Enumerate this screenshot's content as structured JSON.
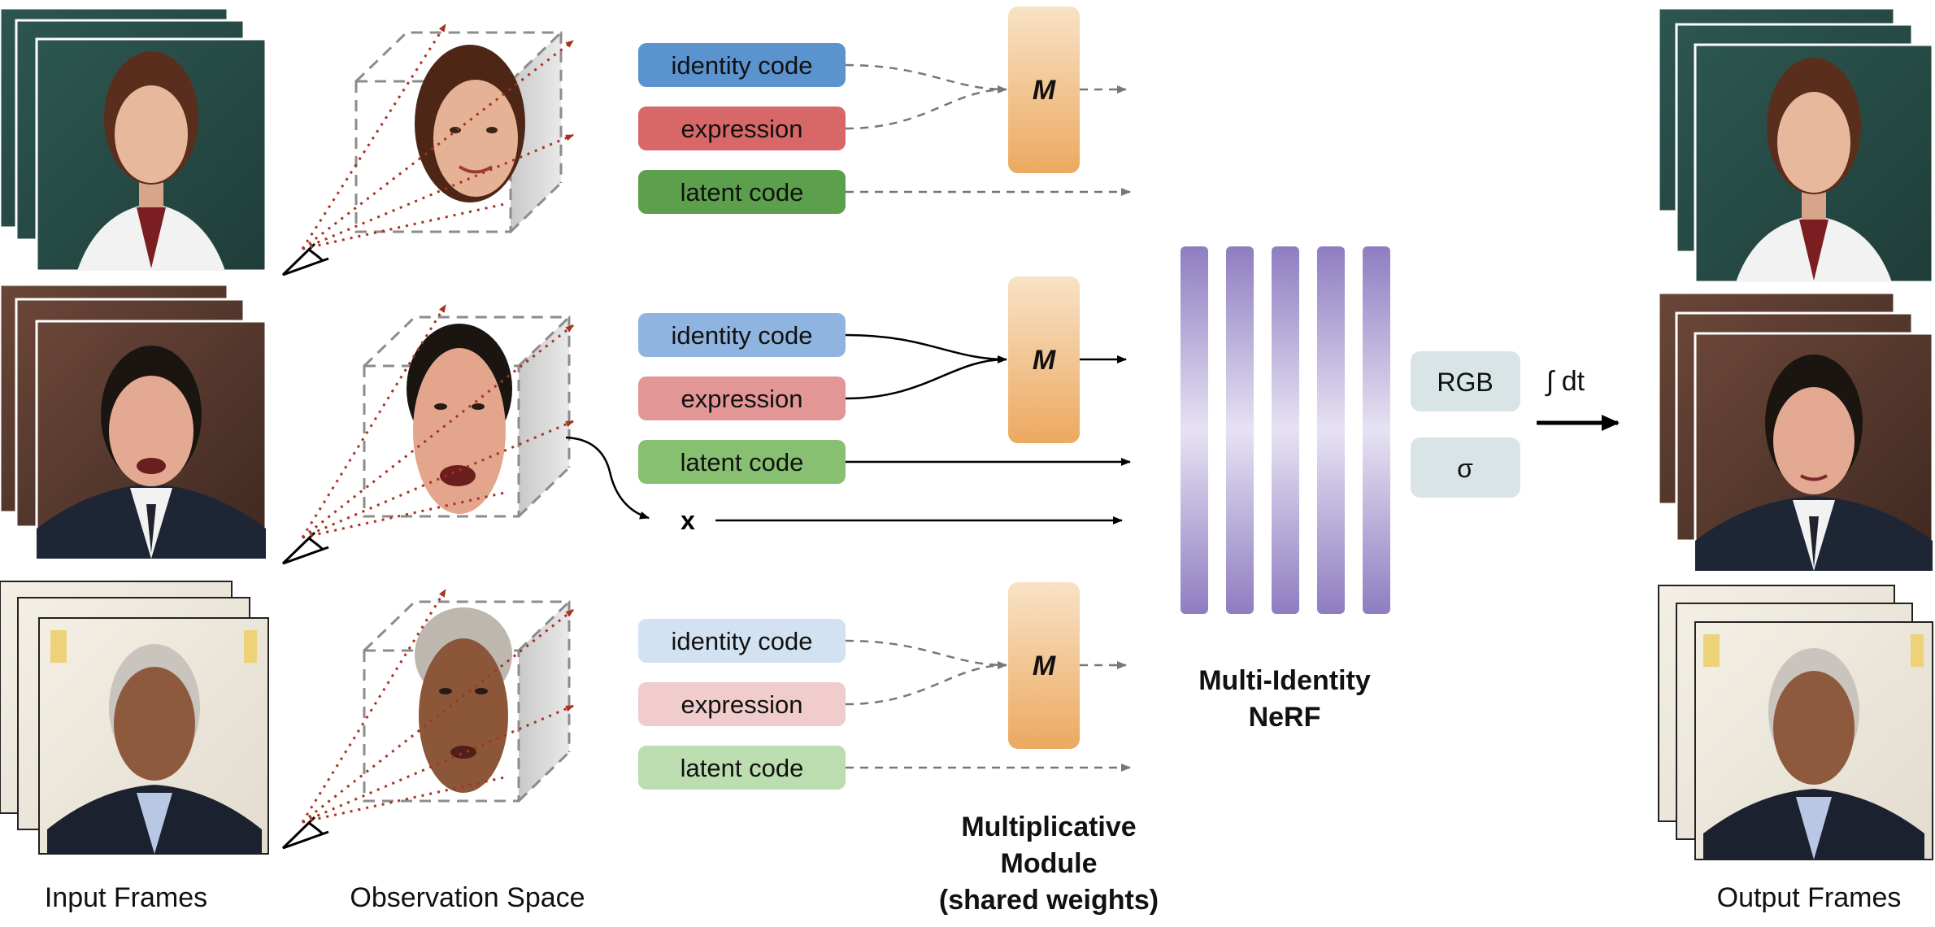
{
  "captions": {
    "input_frames": "Input Frames",
    "observation_space": "Observation Space",
    "output_frames": "Output Frames"
  },
  "rows": [
    {
      "subject": "woman-in-white-coat",
      "identity_label": "identity code",
      "expression_label": "expression",
      "latent_label": "latent code",
      "module_label": "M",
      "active": false,
      "colors": {
        "identity": "#5B93CF",
        "expression": "#D86868",
        "latent": "#5C9F4C"
      }
    },
    {
      "subject": "man-in-suit",
      "identity_label": "identity code",
      "expression_label": "expression",
      "latent_label": "latent code",
      "module_label": "M",
      "active": true,
      "colors": {
        "identity": "#8FB4E0",
        "expression": "#E39696",
        "latent": "#86C070"
      }
    },
    {
      "subject": "grey-haired-man",
      "identity_label": "identity code",
      "expression_label": "expression",
      "latent_label": "latent code",
      "module_label": "M",
      "active": false,
      "colors": {
        "identity": "#D3E2F2",
        "expression": "#F0CCCC",
        "latent": "#BCDDAF"
      }
    }
  ],
  "x_label": "x",
  "multiplicative_module": {
    "line1": "Multiplicative",
    "line2": "Module",
    "line3": "(shared weights)"
  },
  "nerf": {
    "line1": "Multi-Identity",
    "line2": "NeRF",
    "layer_count": 5
  },
  "outputs": {
    "rgb": "RGB",
    "sigma": "σ"
  },
  "integral_label": "∫ dt",
  "colors": {
    "module_top": "#F8E2C6",
    "module_bottom": "#ECA960",
    "nerf_layer": "#9F8FCB",
    "output_box": "#D8E4E6",
    "ray": "#A8321E",
    "cube_edge": "#8C8C8C"
  }
}
